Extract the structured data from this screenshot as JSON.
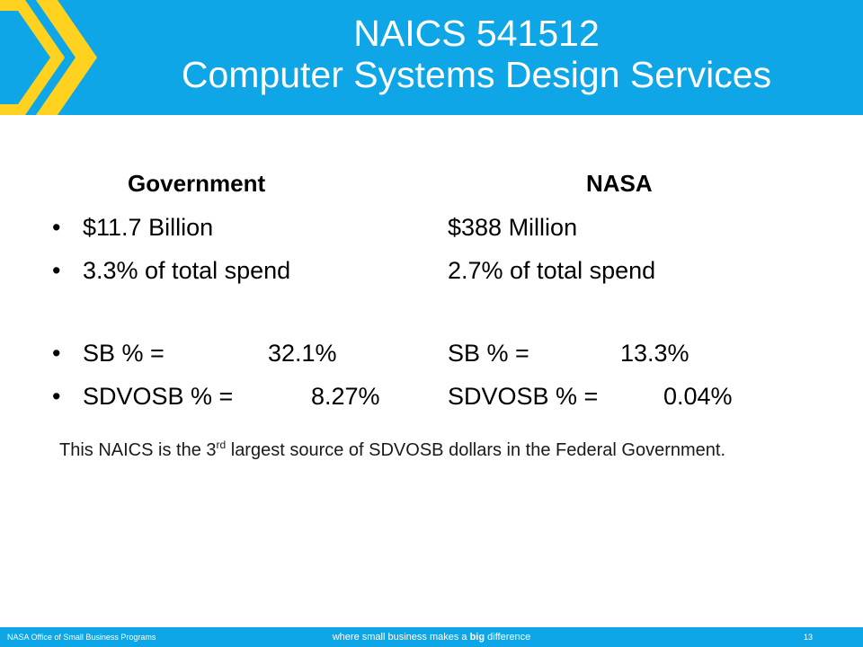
{
  "title": {
    "line1": "NAICS 541512",
    "line2": "Computer Systems Design Services"
  },
  "columns": {
    "left_header": "Government",
    "right_header": "NASA"
  },
  "rows": [
    {
      "left_text": "$11.7 Billion",
      "left_value": "",
      "right_text": "$388 Million",
      "right_value": ""
    },
    {
      "left_text": "3.3% of total spend",
      "left_value": "",
      "right_text": "2.7% of total spend",
      "right_value": ""
    },
    {
      "left_text": "SB % =",
      "left_value": "32.1%",
      "right_text": "SB % =",
      "right_value": "13.3%"
    },
    {
      "left_text": "SDVOSB % =",
      "left_value": "8.27%",
      "right_text": "SDVOSB % =",
      "right_value": "0.04%"
    }
  ],
  "note": {
    "before": "This NAICS  is the 3",
    "superscript": "rd",
    "after": " largest source of SDVOSB dollars in the Federal Government."
  },
  "footer": {
    "left": "NASA Office of Small Business Programs",
    "tagline_pre": "where small business makes a ",
    "tagline_bold": "big",
    "tagline_post": " difference",
    "page_number": "13"
  },
  "colors": {
    "header_blue": "#0ea6e6",
    "chevron_yellow": "#ffd21f"
  },
  "bullet_char": "•"
}
